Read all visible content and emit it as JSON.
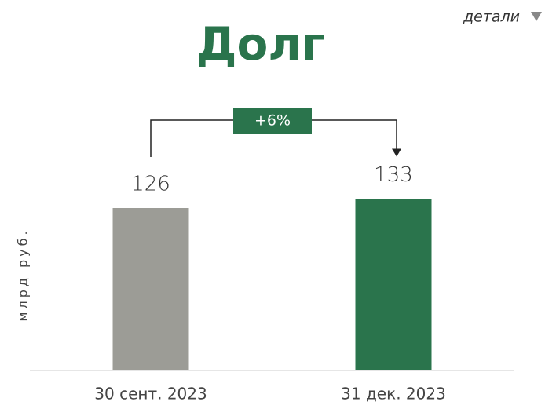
{
  "chart_data": {
    "type": "bar",
    "title": "Долг",
    "link": "детали",
    "y_label": "млрд руб.",
    "annotation": "+6%",
    "categories": [
      "30 сент. 2023",
      "31 дек. 2023"
    ],
    "values": [
      126,
      133
    ],
    "colors": [
      "#9c9c96",
      "#2a744c"
    ],
    "ylim": [
      0,
      140
    ]
  }
}
